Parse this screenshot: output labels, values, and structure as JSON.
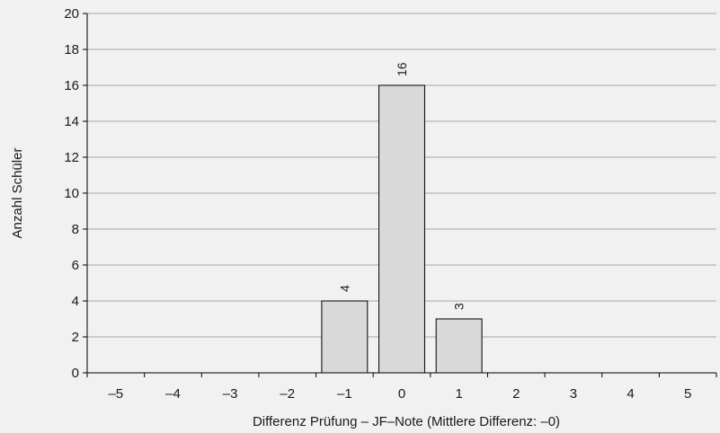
{
  "chart_data": {
    "type": "bar",
    "title": "",
    "xlabel": "Differenz Prüfung – JF–Note (Mittlere Differenz: –0)",
    "ylabel": "Anzahl Schüler",
    "categories": [
      "–5",
      "–4",
      "–3",
      "–2",
      "–1",
      "0",
      "1",
      "2",
      "3",
      "4",
      "5"
    ],
    "values": [
      0,
      0,
      0,
      0,
      4,
      16,
      3,
      0,
      0,
      0,
      0
    ],
    "data_labels": [
      "",
      "",
      "",
      "",
      "4",
      "16",
      "3",
      "",
      "",
      "",
      ""
    ],
    "ylim": [
      0,
      20
    ],
    "yticks": [
      "0",
      "2",
      "4",
      "6",
      "8",
      "10",
      "12",
      "14",
      "16",
      "18",
      "20"
    ],
    "grid": true,
    "legend": "none",
    "colors": {
      "bar_fill": "#d9d9d9",
      "bar_stroke": "#000000",
      "grid": "#a6a6a6",
      "background": "#f1f1f1"
    }
  }
}
